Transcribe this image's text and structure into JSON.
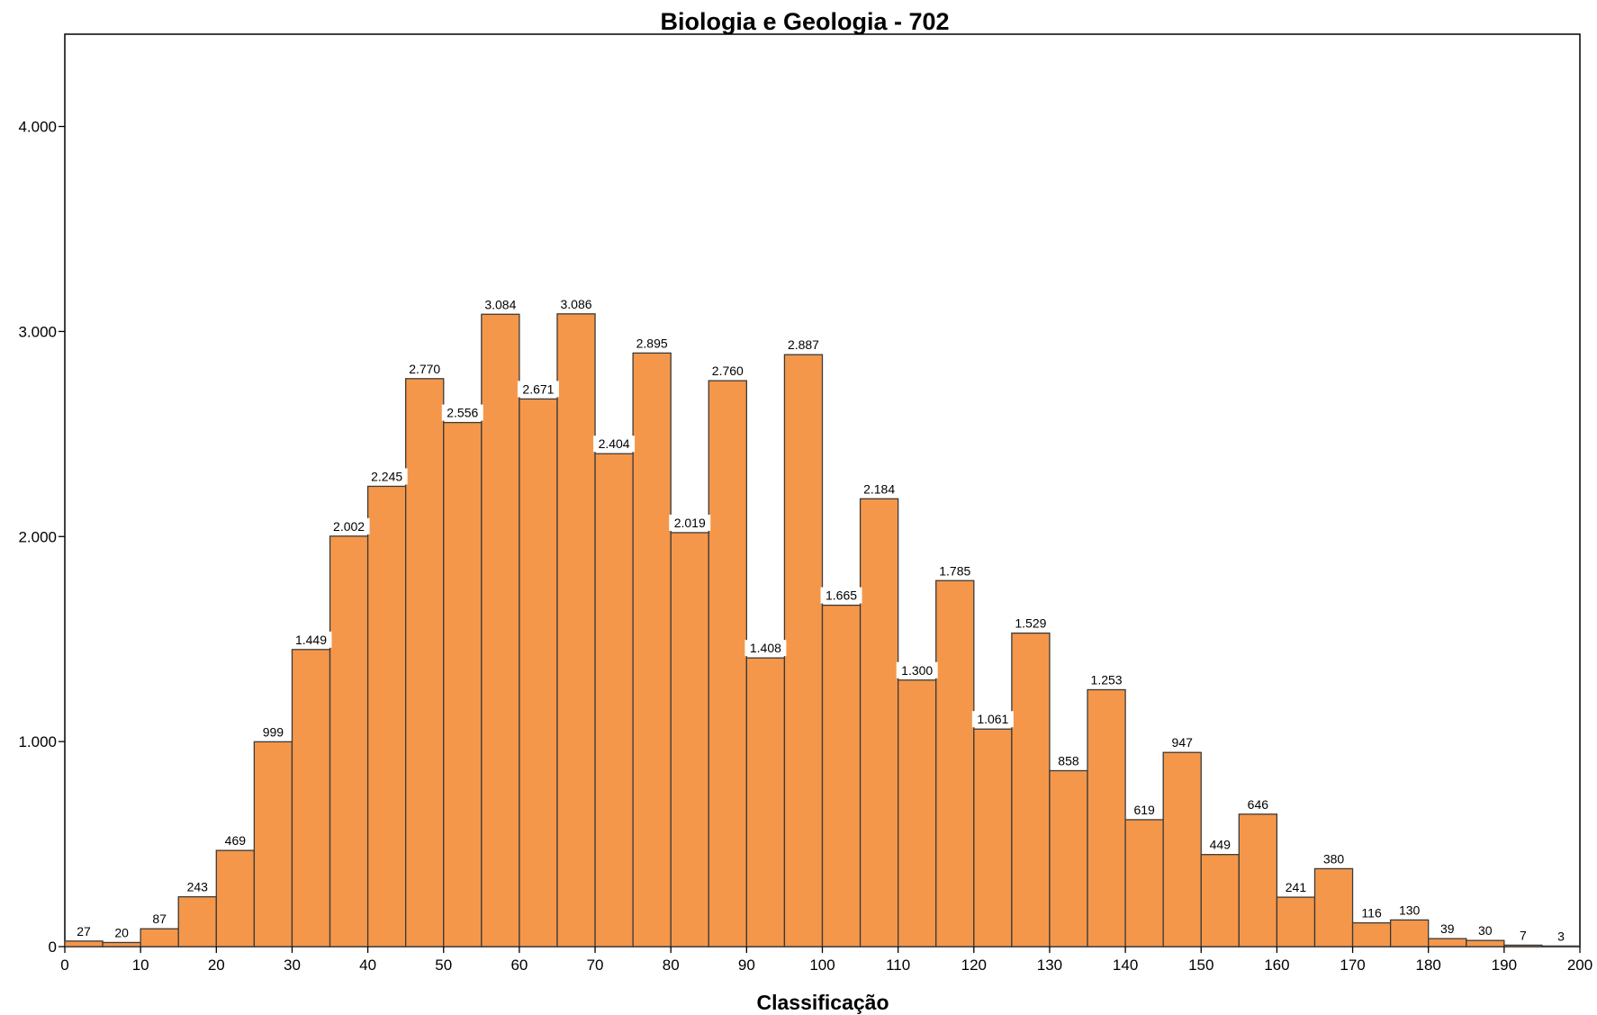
{
  "chart_data": {
    "type": "bar",
    "title": "Biologia e Geologia - 702",
    "xlabel": "Classificação",
    "ylabel": "",
    "bin_width": 5,
    "xlim": [
      0,
      200
    ],
    "ylim": [
      0,
      4450
    ],
    "x_ticks": [
      0,
      10,
      20,
      30,
      40,
      50,
      60,
      70,
      80,
      90,
      100,
      110,
      120,
      130,
      140,
      150,
      160,
      170,
      180,
      190,
      200
    ],
    "x_tick_labels": [
      "0",
      "10",
      "20",
      "30",
      "40",
      "50",
      "60",
      "70",
      "80",
      "90",
      "100",
      "110",
      "120",
      "130",
      "140",
      "150",
      "160",
      "170",
      "180",
      "190",
      "200"
    ],
    "y_ticks": [
      0,
      1000,
      2000,
      3000,
      4000
    ],
    "y_tick_labels": [
      "0",
      "1.000",
      "2.000",
      "3.000",
      "4.000"
    ],
    "bins": [
      0,
      5,
      10,
      15,
      20,
      25,
      30,
      35,
      40,
      45,
      50,
      55,
      60,
      65,
      70,
      75,
      80,
      85,
      90,
      95,
      100,
      105,
      110,
      115,
      120,
      125,
      130,
      135,
      140,
      145,
      150,
      155,
      160,
      165,
      170,
      175,
      180,
      185,
      190,
      195
    ],
    "values": [
      27,
      20,
      87,
      243,
      469,
      999,
      1449,
      2002,
      2245,
      2770,
      2556,
      3084,
      2671,
      3086,
      2404,
      2895,
      2019,
      2760,
      1408,
      2887,
      1665,
      2184,
      1300,
      1785,
      1061,
      1529,
      858,
      1253,
      619,
      947,
      449,
      646,
      241,
      380,
      116,
      130,
      39,
      30,
      7,
      3
    ],
    "value_labels": [
      "27",
      "20",
      "87",
      "243",
      "469",
      "999",
      "1.449",
      "2.002",
      "2.245",
      "2.770",
      "2.556",
      "3.084",
      "2.671",
      "3.086",
      "2.404",
      "2.895",
      "2.019",
      "2.760",
      "1.408",
      "2.887",
      "1.665",
      "2.184",
      "1.300",
      "1.785",
      "1.061",
      "1.529",
      "858",
      "1.253",
      "619",
      "947",
      "449",
      "646",
      "241",
      "380",
      "116",
      "130",
      "39",
      "30",
      "7",
      "3"
    ],
    "bar_color": "#f4974a",
    "grid": false,
    "legend": "none"
  }
}
